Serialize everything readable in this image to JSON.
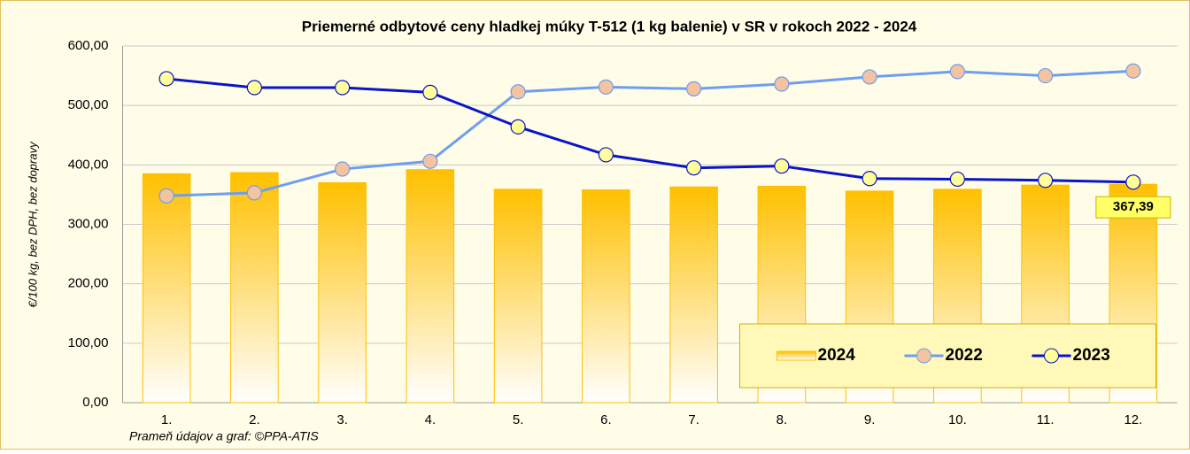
{
  "chart_data": {
    "type": "bar",
    "title": "Priemerné odbytové ceny hladkej múky T-512 (1 kg balenie) v SR v rokoch 2022 - 2024",
    "y_label": "€/100 kg, bez DPH, bez dopravy",
    "source": "Prameň údajov a graf: ©PPA-ATIS",
    "categories": [
      "1.",
      "2.",
      "3.",
      "4.",
      "5.",
      "6.",
      "7.",
      "8.",
      "9.",
      "10.",
      "11.",
      "12."
    ],
    "series": [
      {
        "name": "2024",
        "type": "bar",
        "color": "#ffc000",
        "values": [
          385,
          387,
          370,
          392,
          359,
          358,
          363,
          364,
          356,
          359,
          366,
          367.39
        ],
        "value_labels": [
          null,
          null,
          null,
          null,
          null,
          null,
          null,
          null,
          null,
          null,
          null,
          "367,39"
        ]
      },
      {
        "name": "2022",
        "type": "line",
        "color": "#6e9ef0",
        "marker_color": "#f4c3a0",
        "values": [
          348,
          353,
          393,
          406,
          523,
          531,
          528,
          536,
          548,
          557,
          550,
          558
        ]
      },
      {
        "name": "2023",
        "type": "line",
        "color": "#0a14c8",
        "marker_color": "#ffff99",
        "values": [
          545,
          530,
          530,
          522,
          464,
          417,
          395,
          398,
          377,
          376,
          374,
          371
        ]
      }
    ],
    "ylim": [
      0,
      600
    ],
    "yticks": [
      {
        "value": 0,
        "label": "0,00"
      },
      {
        "value": 100,
        "label": "100,00"
      },
      {
        "value": 200,
        "label": "200,00"
      },
      {
        "value": 300,
        "label": "300,00"
      },
      {
        "value": 400,
        "label": "400,00"
      },
      {
        "value": 500,
        "label": "500,00"
      },
      {
        "value": 600,
        "label": "600,00"
      }
    ],
    "grid": true,
    "legend": "lower right"
  }
}
